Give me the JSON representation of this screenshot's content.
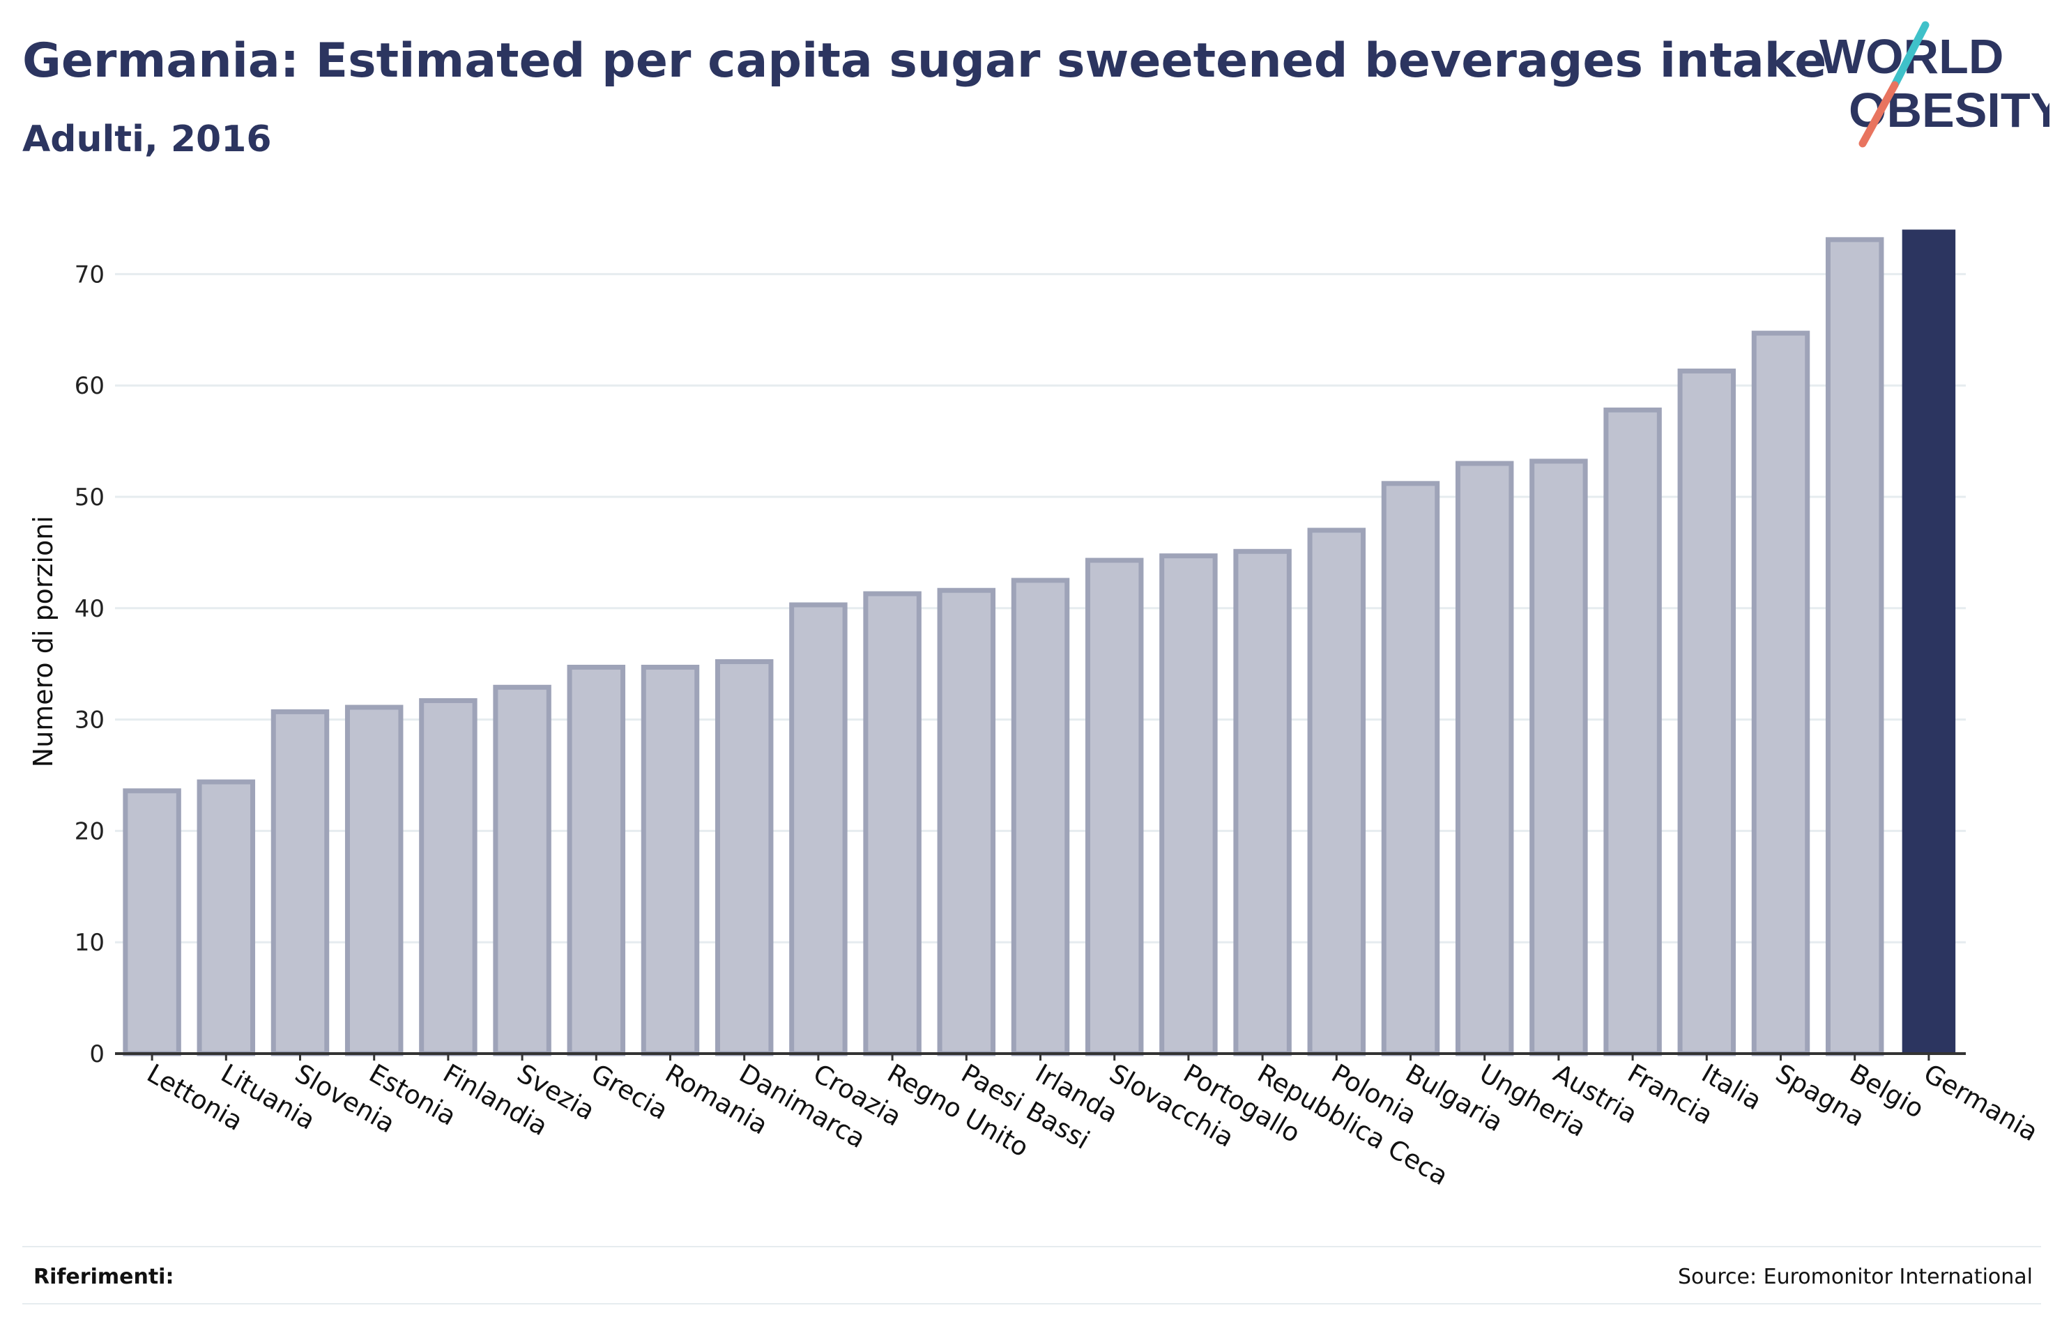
{
  "header": {
    "title": "Germania: Estimated per capita sugar sweetened beverages intake",
    "subtitle": "Adulti, 2016"
  },
  "logo": {
    "line1": "WORLD",
    "line2": "OBESITY",
    "text_color": "#2c3560",
    "slash_colors": [
      "#3fc1c9",
      "#e8745f"
    ]
  },
  "footer": {
    "references_label": "Riferimenti:",
    "source": "Source: Euromonitor International"
  },
  "colors": {
    "highlight_bar": "#2c3560",
    "bar_fill": "#bfc2d0",
    "bar_stroke": "#9ea3b8",
    "grid": "#e6ecef",
    "axis": "#333333"
  },
  "chart_data": {
    "type": "bar",
    "title": "Germania: Estimated per capita sugar sweetened beverages intake",
    "subtitle": "Adulti, 2016",
    "xlabel": "",
    "ylabel": "Numero di porzioni",
    "ylim": [
      0,
      74
    ],
    "yticks": [
      0,
      10,
      20,
      30,
      40,
      50,
      60,
      70
    ],
    "grid": true,
    "highlight": "Germania",
    "categories": [
      "Lettonia",
      "Lituania",
      "Slovenia",
      "Estonia",
      "Finlandia",
      "Svezia",
      "Grecia",
      "Romania",
      "Danimarca",
      "Croazia",
      "Regno Unito",
      "Paesi Bassi",
      "Irlanda",
      "Slovacchia",
      "Portogallo",
      "Repubblica Ceca",
      "Polonia",
      "Bulgaria",
      "Ungheria",
      "Austria",
      "Francia",
      "Italia",
      "Spagna",
      "Belgio",
      "Germania"
    ],
    "values": [
      23.6,
      24.4,
      30.7,
      31.1,
      31.7,
      32.9,
      34.7,
      34.7,
      35.2,
      40.3,
      41.3,
      41.6,
      42.5,
      44.3,
      44.7,
      45.1,
      47.0,
      51.2,
      53.0,
      53.2,
      57.8,
      61.3,
      64.7,
      73.1,
      74.0
    ]
  }
}
